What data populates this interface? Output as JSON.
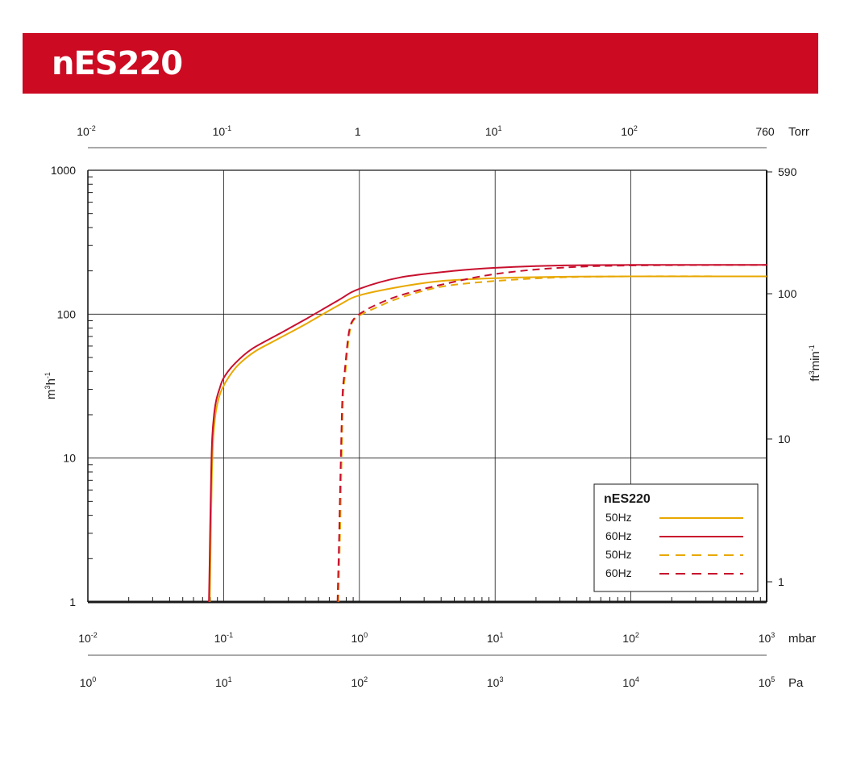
{
  "title": "nES220",
  "colors": {
    "banner": "#cc0a22",
    "gold": "#e8a800",
    "red": "#c8102e",
    "grid": "#1a1a1a"
  },
  "axes": {
    "torr": {
      "ticks": [
        {
          "label": "10",
          "exp": "-2"
        },
        {
          "label": "10",
          "exp": "-1"
        },
        {
          "label": "1",
          "exp": ""
        },
        {
          "label": "10",
          "exp": "1"
        },
        {
          "label": "10",
          "exp": "2"
        },
        {
          "label": "760",
          "exp": ""
        }
      ],
      "unit": "Torr"
    },
    "mbar": {
      "ticks": [
        {
          "label": "10",
          "exp": "-2"
        },
        {
          "label": "10",
          "exp": "-1"
        },
        {
          "label": "10",
          "exp": "0"
        },
        {
          "label": "10",
          "exp": "1"
        },
        {
          "label": "10",
          "exp": "2"
        },
        {
          "label": "10",
          "exp": "3"
        }
      ],
      "unit": "mbar"
    },
    "pa": {
      "ticks": [
        {
          "label": "10",
          "exp": "0"
        },
        {
          "label": "10",
          "exp": "1"
        },
        {
          "label": "10",
          "exp": "2"
        },
        {
          "label": "10",
          "exp": "3"
        },
        {
          "label": "10",
          "exp": "4"
        },
        {
          "label": "10",
          "exp": "5"
        }
      ],
      "unit": "Pa"
    },
    "left": {
      "ticks": [
        "1000",
        "100",
        "10",
        "1"
      ],
      "unit_base": "m",
      "unit_sup1": "3",
      "unit_mid": "h",
      "unit_sup2": "-1"
    },
    "right": {
      "ticks": [
        "590",
        "100",
        "10",
        "1"
      ],
      "unit_base": "ft",
      "unit_sup1": "3",
      "unit_mid": "min",
      "unit_sup2": "-1"
    }
  },
  "legend": {
    "title": "nES220",
    "items": [
      {
        "label": "50Hz",
        "color": "#e8a800",
        "dash": false
      },
      {
        "label": "60Hz",
        "color": "#c8102e",
        "dash": false
      },
      {
        "label": "50Hz",
        "color": "#e8a800",
        "dash": true
      },
      {
        "label": "60Hz",
        "color": "#c8102e",
        "dash": true
      }
    ]
  },
  "chart_data": {
    "type": "line",
    "xscale": "log",
    "yscale": "log",
    "xlim": [
      0.01,
      1000
    ],
    "ylim": [
      1,
      1000
    ],
    "grid": true,
    "legend_position": "bottom-right",
    "series": [
      {
        "name": "50Hz",
        "color": "#e8a800",
        "dash": false,
        "x": [
          0.079,
          0.0805,
          0.082,
          0.084,
          0.087,
          0.091,
          0.097,
          0.11,
          0.13,
          0.17,
          0.25,
          0.4,
          0.7,
          1.0,
          2.0,
          4.0,
          10,
          30,
          100,
          1000
        ],
        "y": [
          1,
          3,
          8,
          14,
          20,
          25,
          30,
          37,
          45,
          55,
          67,
          85,
          115,
          135,
          155,
          170,
          178,
          182,
          183,
          183
        ]
      },
      {
        "name": "60Hz",
        "color": "#c8102e",
        "dash": false,
        "x": [
          0.078,
          0.0795,
          0.081,
          0.0825,
          0.085,
          0.088,
          0.093,
          0.1,
          0.12,
          0.16,
          0.25,
          0.4,
          0.7,
          1.0,
          2.0,
          5.0,
          10,
          30,
          100,
          1000
        ],
        "y": [
          1,
          3,
          8,
          14,
          20,
          25,
          30,
          36,
          45,
          57,
          72,
          92,
          125,
          150,
          180,
          200,
          210,
          218,
          220,
          220
        ]
      },
      {
        "name": "50Hz",
        "color": "#e8a800",
        "dash": true,
        "x": [
          0.7,
          0.72,
          0.74,
          0.76,
          0.79,
          0.83,
          0.86,
          0.9,
          1.0,
          1.3,
          2.0,
          4.0,
          10,
          30,
          100,
          1000
        ],
        "y": [
          1,
          3,
          10,
          27,
          40,
          65,
          80,
          90,
          98,
          110,
          130,
          155,
          170,
          180,
          183,
          183
        ]
      },
      {
        "name": "60Hz",
        "color": "#c8102e",
        "dash": true,
        "x": [
          0.69,
          0.71,
          0.73,
          0.75,
          0.78,
          0.82,
          0.85,
          0.89,
          1.0,
          1.3,
          2.0,
          4.0,
          10,
          30,
          100,
          1000
        ],
        "y": [
          1,
          3,
          10,
          27,
          40,
          65,
          80,
          90,
          100,
          115,
          135,
          160,
          190,
          210,
          218,
          220
        ]
      }
    ]
  }
}
